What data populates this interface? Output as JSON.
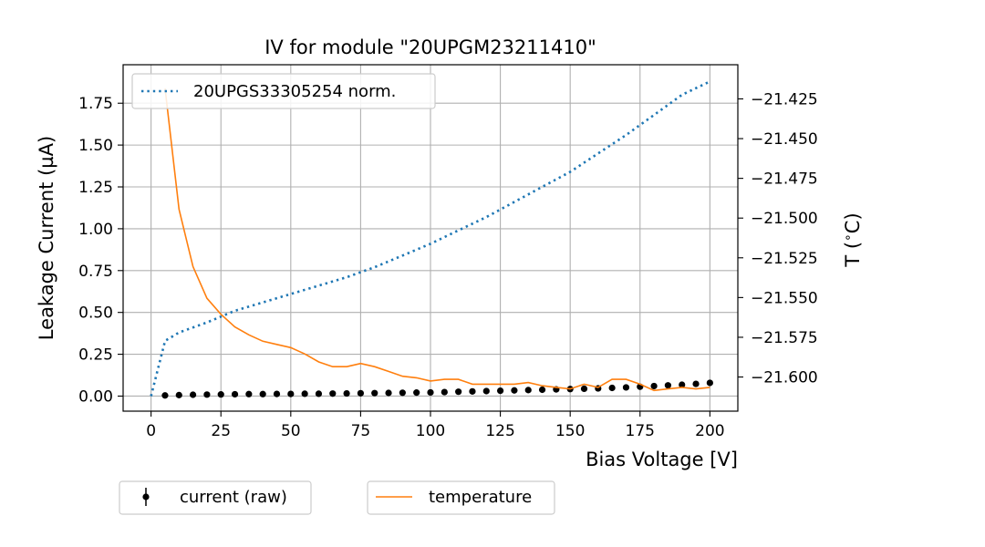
{
  "chart_data": {
    "type": "line",
    "title": "IV for module \"20UPGM23211410\"",
    "xlabel": "Bias Voltage [V]",
    "ylabel": "Leakage Current (µA)",
    "y2label": "T ($^\\circ$C)",
    "xlim": [
      -10,
      210
    ],
    "ylim": [
      -0.09,
      1.98
    ],
    "y2lim": [
      -21.6215,
      -21.4035
    ],
    "x_ticks": [
      "0",
      "25",
      "50",
      "75",
      "100",
      "125",
      "150",
      "175",
      "200"
    ],
    "y_ticks": [
      "0.00",
      "0.25",
      "0.50",
      "0.75",
      "1.00",
      "1.25",
      "1.50",
      "1.75"
    ],
    "y2_ticks": [
      "−21.425",
      "−21.450",
      "−21.475",
      "−21.500",
      "−21.525",
      "−21.550",
      "−21.575",
      "−21.600"
    ],
    "grid": true,
    "series": [
      {
        "name": "20UPGS33305254 norm.",
        "style": "dotted",
        "color": "#1f77b4",
        "axis": "left",
        "x": [
          0,
          5,
          10,
          20,
          30,
          40,
          50,
          60,
          70,
          80,
          90,
          100,
          110,
          120,
          130,
          140,
          150,
          160,
          170,
          180,
          190,
          200
        ],
        "y": [
          0.0,
          0.33,
          0.38,
          0.44,
          0.51,
          0.56,
          0.61,
          0.66,
          0.71,
          0.77,
          0.84,
          0.91,
          0.99,
          1.07,
          1.16,
          1.25,
          1.34,
          1.45,
          1.56,
          1.68,
          1.8,
          1.88
        ]
      },
      {
        "name": "current (raw)",
        "style": "markers",
        "color": "#000000",
        "axis": "left",
        "x": [
          5,
          10,
          15,
          20,
          25,
          30,
          35,
          40,
          45,
          50,
          55,
          60,
          65,
          70,
          75,
          80,
          85,
          90,
          95,
          100,
          105,
          110,
          115,
          120,
          125,
          130,
          135,
          140,
          145,
          150,
          155,
          160,
          165,
          170,
          175,
          180,
          185,
          190,
          195,
          200
        ],
        "y": [
          0.004,
          0.006,
          0.008,
          0.009,
          0.01,
          0.011,
          0.012,
          0.012,
          0.013,
          0.013,
          0.014,
          0.014,
          0.015,
          0.016,
          0.017,
          0.018,
          0.019,
          0.02,
          0.021,
          0.022,
          0.024,
          0.026,
          0.028,
          0.03,
          0.032,
          0.034,
          0.036,
          0.038,
          0.04,
          0.042,
          0.044,
          0.046,
          0.049,
          0.052,
          0.056,
          0.06,
          0.064,
          0.068,
          0.073,
          0.079
        ]
      },
      {
        "name": "temperature",
        "style": "solid",
        "color": "#ff7f0e",
        "axis": "right",
        "x": [
          5,
          10,
          15,
          20,
          25,
          30,
          35,
          40,
          45,
          50,
          55,
          60,
          65,
          70,
          75,
          80,
          85,
          90,
          95,
          100,
          105,
          110,
          115,
          120,
          125,
          130,
          135,
          140,
          145,
          150,
          155,
          160,
          165,
          170,
          175,
          180,
          185,
          190,
          195,
          200
        ],
        "y": [
          -21.4185,
          -21.4945,
          -21.5305,
          -21.5505,
          -21.5605,
          -21.5685,
          -21.5735,
          -21.5775,
          -21.5795,
          -21.5815,
          -21.5855,
          -21.5905,
          -21.5935,
          -21.5935,
          -21.5915,
          -21.5935,
          -21.5965,
          -21.5995,
          -21.6005,
          -21.6025,
          -21.6015,
          -21.6015,
          -21.6045,
          -21.6045,
          -21.6045,
          -21.6045,
          -21.6035,
          -21.6055,
          -21.6065,
          -21.6075,
          -21.6045,
          -21.6065,
          -21.6015,
          -21.6015,
          -21.6045,
          -21.6085,
          -21.6075,
          -21.6065,
          -21.6075,
          -21.6065
        ]
      }
    ],
    "legends": [
      {
        "placement": "upper-left inside plot",
        "entries": [
          "20UPGS33305254 norm."
        ]
      },
      {
        "placement": "below plot, left",
        "entries": [
          "current (raw)"
        ]
      },
      {
        "placement": "below plot, center",
        "entries": [
          "temperature"
        ]
      }
    ]
  }
}
